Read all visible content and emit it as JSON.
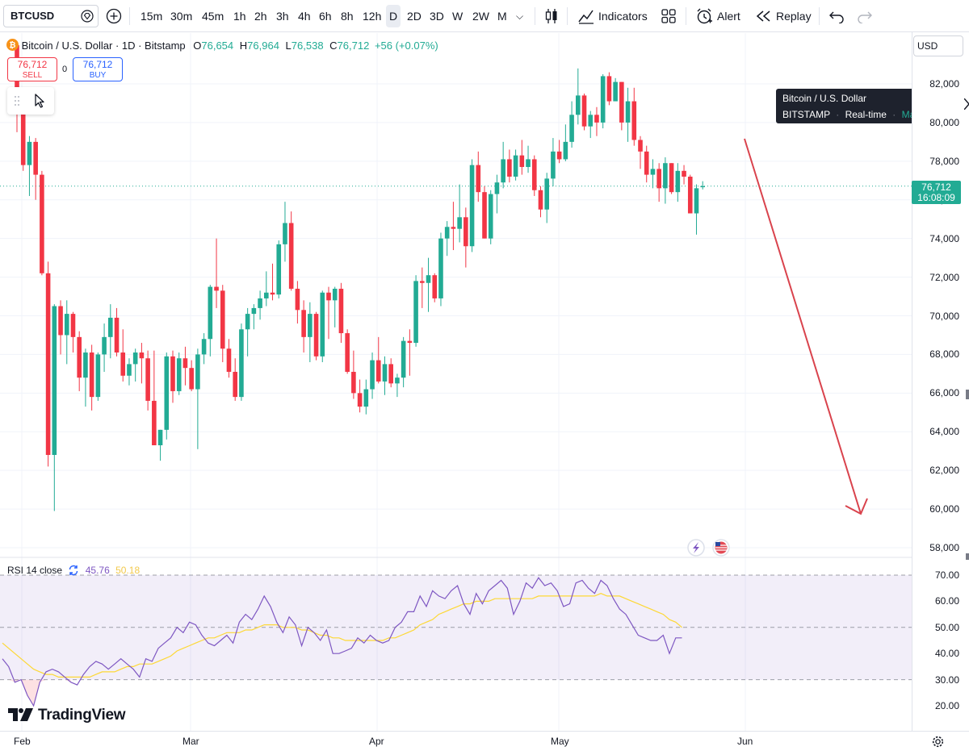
{
  "toolbar": {
    "symbol": "BTCUSD",
    "intervals": [
      "15m",
      "30m",
      "45m",
      "1h",
      "2h",
      "3h",
      "4h",
      "6h",
      "8h",
      "12h",
      "D",
      "2D",
      "3D",
      "W",
      "2W",
      "M"
    ],
    "active_interval": "D",
    "indicators_label": "Indicators",
    "alert_label": "Alert",
    "replay_label": "Replay"
  },
  "legend": {
    "name": "Bitcoin / U.S. Dollar · 1D · Bitstamp",
    "o_label": "O",
    "o": "76,654",
    "h_label": "H",
    "h": "76,964",
    "l_label": "L",
    "l": "76,538",
    "c_label": "C",
    "c": "76,712",
    "change": "+56 (+0.07%)"
  },
  "trade": {
    "sell_price": "76,712",
    "sell_label": "SELL",
    "spread": "0",
    "buy_price": "76,712",
    "buy_label": "BUY"
  },
  "tooltip": {
    "title": "Bitcoin / U.S. Dollar",
    "exchange": "BITSTAMP",
    "realtime": "Real-time",
    "status": "Market open"
  },
  "currency": "USD",
  "price_tag": {
    "price": "76,712",
    "countdown": "16:08:09"
  },
  "rsi_legend": {
    "name": "RSI 14 close",
    "value": "45.76",
    "ma": "50.18"
  },
  "logo_text": "TradingView",
  "colors": {
    "up": "#22ab94",
    "down": "#f23645",
    "rsi_line": "#7e57c2",
    "rsi_ma": "#fdd835",
    "rsi_band": "#7e57c2",
    "arrow": "#d9434d"
  },
  "chart_data": [
    {
      "type": "candlestick",
      "title": "Bitcoin / U.S. Dollar · 1D · Bitstamp",
      "x_labels": [
        "Feb",
        "Mar",
        "Apr",
        "May",
        "Jun"
      ],
      "y_ticks": [
        "82,000",
        "80,000",
        "78,000",
        "76,000",
        "74,000",
        "72,000",
        "70,000",
        "68,000",
        "66,000",
        "64,000",
        "62,000",
        "60,000",
        "58,000"
      ],
      "ylim": [
        57500,
        83500
      ],
      "candles_ohlc": [
        [
          84000,
          84200,
          79500,
          81000
        ],
        [
          81000,
          81200,
          77500,
          77800
        ],
        [
          77800,
          79300,
          76200,
          79000
        ],
        [
          79000,
          79200,
          76000,
          77300
        ],
        [
          77300,
          77500,
          72100,
          72200
        ],
        [
          72200,
          72800,
          62200,
          62800
        ],
        [
          62800,
          70600,
          59900,
          70500
        ],
        [
          70500,
          70800,
          68000,
          69000
        ],
        [
          69000,
          70800,
          67500,
          70100
        ],
        [
          70100,
          70200,
          68100,
          68900
        ],
        [
          68900,
          69200,
          66100,
          66800
        ],
        [
          66800,
          68300,
          65300,
          68100
        ],
        [
          68100,
          68500,
          65100,
          65800
        ],
        [
          65800,
          68100,
          65600,
          68000
        ],
        [
          68000,
          69600,
          67100,
          68900
        ],
        [
          68900,
          70600,
          67800,
          69900
        ],
        [
          69900,
          70400,
          67900,
          68100
        ],
        [
          68100,
          69300,
          66600,
          66900
        ],
        [
          66900,
          67800,
          66400,
          67500
        ],
        [
          67500,
          68300,
          66600,
          68100
        ],
        [
          68100,
          68600,
          66500,
          67800
        ],
        [
          67800,
          68200,
          65100,
          65600
        ],
        [
          65600,
          68200,
          64900,
          63300
        ],
        [
          63300,
          64100,
          62500,
          64100
        ],
        [
          64100,
          68100,
          63600,
          67900
        ],
        [
          67900,
          68200,
          65500,
          66100
        ],
        [
          66100,
          68100,
          65900,
          67800
        ],
        [
          67800,
          68400,
          66400,
          67300
        ],
        [
          67300,
          67700,
          66100,
          66200
        ],
        [
          66200,
          68300,
          63100,
          68000
        ],
        [
          68000,
          69100,
          67500,
          68800
        ],
        [
          68800,
          71600,
          67900,
          71500
        ],
        [
          71500,
          74000,
          70400,
          71300
        ],
        [
          71300,
          71600,
          67600,
          68300
        ],
        [
          68300,
          68800,
          66800,
          67100
        ],
        [
          67100,
          67800,
          65600,
          65800
        ],
        [
          65800,
          69600,
          65600,
          69300
        ],
        [
          69300,
          70400,
          67900,
          70100
        ],
        [
          70100,
          70600,
          69300,
          70400
        ],
        [
          70400,
          71300,
          69800,
          70900
        ],
        [
          70900,
          72300,
          70500,
          71200
        ],
        [
          71200,
          72700,
          70800,
          71100
        ],
        [
          71100,
          73900,
          70900,
          73700
        ],
        [
          73700,
          75900,
          72800,
          74800
        ],
        [
          74800,
          75400,
          71300,
          71400
        ],
        [
          71400,
          71800,
          69600,
          70300
        ],
        [
          70300,
          70800,
          68100,
          68900
        ],
        [
          68900,
          70700,
          67600,
          70100
        ],
        [
          70100,
          70200,
          67700,
          67900
        ],
        [
          67900,
          71300,
          67600,
          71200
        ],
        [
          71200,
          71500,
          68800,
          70800
        ],
        [
          70800,
          71500,
          69400,
          71400
        ],
        [
          71400,
          71700,
          68600,
          69100
        ],
        [
          69100,
          69300,
          67000,
          67100
        ],
        [
          67100,
          68200,
          65700,
          66000
        ],
        [
          66000,
          66700,
          65000,
          65300
        ],
        [
          65300,
          66700,
          64900,
          66200
        ],
        [
          66200,
          68100,
          65700,
          67700
        ],
        [
          67700,
          68900,
          66500,
          66600
        ],
        [
          66600,
          67900,
          65900,
          67500
        ],
        [
          67500,
          67800,
          66300,
          66500
        ],
        [
          66500,
          67000,
          65800,
          66800
        ],
        [
          66800,
          68900,
          66300,
          68700
        ],
        [
          68700,
          69300,
          66900,
          68600
        ],
        [
          68600,
          72100,
          68400,
          71800
        ],
        [
          71800,
          72500,
          70400,
          71700
        ],
        [
          71700,
          73000,
          70200,
          72100
        ],
        [
          72100,
          72200,
          70700,
          70900
        ],
        [
          70900,
          74300,
          70500,
          74000
        ],
        [
          74000,
          74900,
          73100,
          74600
        ],
        [
          74600,
          75900,
          73400,
          74500
        ],
        [
          74500,
          76800,
          73800,
          75100
        ],
        [
          75100,
          75600,
          72500,
          73600
        ],
        [
          73600,
          78100,
          73300,
          77800
        ],
        [
          77800,
          78500,
          75900,
          76400
        ],
        [
          76400,
          76700,
          74000,
          74000
        ],
        [
          74000,
          76500,
          73700,
          76300
        ],
        [
          76300,
          77300,
          75300,
          76900
        ],
        [
          76900,
          79000,
          76600,
          78100
        ],
        [
          78100,
          78600,
          76900,
          77200
        ],
        [
          77200,
          78600,
          77000,
          78300
        ],
        [
          78300,
          79100,
          77300,
          77700
        ],
        [
          77700,
          78800,
          77400,
          78100
        ],
        [
          78100,
          78300,
          76200,
          76500
        ],
        [
          76500,
          76700,
          75100,
          75500
        ],
        [
          75500,
          77400,
          74800,
          77100
        ],
        [
          77100,
          79200,
          76700,
          78500
        ],
        [
          78500,
          79100,
          77900,
          78100
        ],
        [
          78100,
          79900,
          78000,
          79000
        ],
        [
          79000,
          81100,
          78700,
          80400
        ],
        [
          80400,
          82800,
          79900,
          81400
        ],
        [
          81400,
          81500,
          79600,
          79800
        ],
        [
          79800,
          80600,
          79200,
          80400
        ],
        [
          80400,
          80800,
          79300,
          80000
        ],
        [
          80000,
          82500,
          79700,
          82400
        ],
        [
          82400,
          82600,
          80900,
          81100
        ],
        [
          81100,
          82300,
          81200,
          82100
        ],
        [
          82100,
          82100,
          79600,
          80000
        ],
        [
          80000,
          81800,
          79000,
          81100
        ],
        [
          81100,
          81800,
          78800,
          79100
        ],
        [
          79100,
          79300,
          77600,
          78500
        ],
        [
          78500,
          78800,
          76900,
          77300
        ],
        [
          77300,
          78100,
          76600,
          77600
        ],
        [
          77600,
          77900,
          75900,
          76600
        ],
        [
          76600,
          78200,
          75800,
          77900
        ],
        [
          77900,
          77900,
          76300,
          76400
        ],
        [
          76400,
          77900,
          75900,
          77500
        ],
        [
          77500,
          77800,
          76800,
          77200
        ],
        [
          77200,
          77300,
          75300,
          75300
        ],
        [
          75300,
          76800,
          74200,
          76600
        ],
        [
          76654,
          76964,
          76538,
          76712
        ]
      ]
    },
    {
      "type": "line",
      "title": "RSI 14 close",
      "y_ticks": [
        "70.00",
        "60.00",
        "50.00",
        "40.00",
        "30.00",
        "20.00"
      ],
      "ylim": [
        15,
        75
      ],
      "bands": [
        30,
        50,
        70
      ],
      "series": [
        {
          "name": "RSI",
          "values": [
            38,
            35,
            29,
            30,
            24,
            20,
            29,
            33,
            34,
            33,
            31,
            29,
            28,
            32,
            35,
            37,
            36,
            34,
            36,
            38,
            36,
            34,
            31,
            38,
            37,
            42,
            44,
            46,
            50,
            48,
            52,
            51,
            47,
            44,
            43,
            45,
            47,
            44,
            52,
            55,
            53,
            57,
            62,
            58,
            52,
            48,
            54,
            51,
            43,
            50,
            48,
            45,
            49,
            40,
            40,
            41,
            42,
            46,
            44,
            47,
            45,
            44,
            45,
            50,
            52,
            56,
            56,
            62,
            58,
            64,
            62,
            61,
            64,
            66,
            59,
            55,
            63,
            59,
            64,
            66,
            68,
            65,
            55,
            60,
            67,
            65,
            69,
            66,
            67,
            64,
            58,
            59,
            67,
            68,
            65,
            63,
            68,
            66,
            61,
            57,
            55,
            51,
            47,
            46,
            45,
            45,
            47,
            40,
            46,
            46
          ]
        },
        {
          "name": "RSI MA",
          "values": [
            44,
            42,
            40,
            38,
            36,
            34,
            33,
            32,
            32,
            31,
            31,
            31,
            31,
            31,
            31,
            32,
            33,
            33,
            33,
            34,
            35,
            35,
            36,
            36,
            36,
            37,
            38,
            39,
            41,
            42,
            43,
            44,
            45,
            46,
            46,
            47,
            48,
            48,
            48,
            49,
            49,
            50,
            51,
            51,
            51,
            50,
            50,
            50,
            49,
            49,
            48,
            47,
            47,
            46,
            46,
            45,
            45,
            45,
            45,
            45,
            45,
            45,
            46,
            46,
            47,
            48,
            49,
            51,
            52,
            53,
            55,
            56,
            57,
            58,
            59,
            59,
            60,
            60,
            60,
            61,
            61,
            61,
            61,
            61,
            61,
            61,
            62,
            62,
            62,
            62,
            62,
            62,
            62,
            62,
            62,
            62,
            63,
            62,
            62,
            62,
            61,
            60,
            59,
            58,
            57,
            56,
            55,
            53,
            52,
            50
          ]
        }
      ]
    }
  ]
}
